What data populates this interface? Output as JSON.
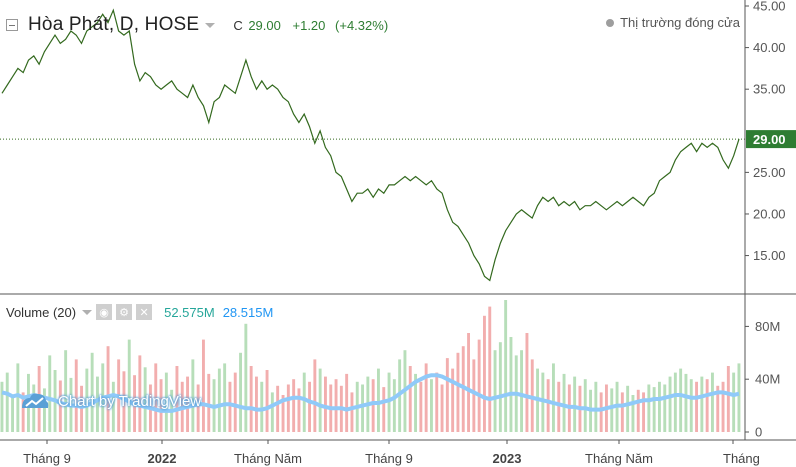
{
  "header": {
    "symbol": "Hòa Phát, D, HOSE",
    "close_label": "C",
    "close_value": "29.00",
    "change": "+1.20",
    "change_pct": "(+4.32%)",
    "market_status": "Thị trường đóng cửa"
  },
  "volume_legend": {
    "title": "Volume (20)",
    "value": "52.575M",
    "ma_value": "28.515M"
  },
  "watermark": "Chart by TradingView",
  "colors": {
    "price_line": "#33691e",
    "last_price_bg": "#2e7d32",
    "volume_up": "#a5d6a7",
    "volume_down": "#ef9a9a",
    "volume_ma": "#90caf9"
  },
  "chart_data": [
    {
      "type": "line",
      "series": [
        {
          "values": [
            34.5,
            35.5,
            36.5,
            37.5,
            37.0,
            38.5,
            39.0,
            38.0,
            39.5,
            40.5,
            41.5,
            40.5,
            41.0,
            42.0,
            41.5,
            40.5,
            42.0,
            42.5,
            43.0,
            44.0,
            43.0,
            44.5,
            42.0,
            41.5,
            42.0,
            38.0,
            36.0,
            37.0,
            36.5,
            35.5,
            35.0,
            35.5,
            36.0,
            35.0,
            34.5,
            34.0,
            35.5,
            34.0,
            33.0,
            31.0,
            33.5,
            34.0,
            35.5,
            35.0,
            34.5,
            36.5,
            38.5,
            36.5,
            35.0,
            36.0,
            35.0,
            35.5,
            35.0,
            34.0,
            33.5,
            32.0,
            31.0,
            32.0,
            30.5,
            28.5,
            30.0,
            28.0,
            27.0,
            25.0,
            24.5,
            23.0,
            21.5,
            22.5,
            22.5,
            23.0,
            22.0,
            23.0,
            22.5,
            23.5,
            23.5,
            24.0,
            24.5,
            24.0,
            24.5,
            24.0,
            23.5,
            24.0,
            23.0,
            22.5,
            20.5,
            19.0,
            18.5,
            17.5,
            16.5,
            15.0,
            14.0,
            12.5,
            12.0,
            14.5,
            16.5,
            18.0,
            19.0,
            20.0,
            20.5,
            20.0,
            19.5,
            21.0,
            22.0,
            21.5,
            22.0,
            21.0,
            21.5,
            21.0,
            21.5,
            20.5,
            21.0,
            21.0,
            21.5,
            21.0,
            20.5,
            21.0,
            21.5,
            21.0,
            21.5,
            22.0,
            21.5,
            21.0,
            22.0,
            22.5,
            24.0,
            24.5,
            25.0,
            26.5,
            27.5,
            28.0,
            28.5,
            27.5,
            28.5,
            28.0,
            28.5,
            28.0,
            26.5,
            25.5,
            27.0,
            29.0
          ]
        }
      ],
      "x_tick_labels": [
        "Tháng 9",
        "2022",
        "Tháng Năm",
        "Tháng 9",
        "2023",
        "Tháng Năm",
        "Tháng"
      ],
      "y_tick_labels": [
        "15.00",
        "20.00",
        "25.00",
        "35.00",
        "40.00",
        "45.00"
      ],
      "ylim": [
        10.5,
        45
      ],
      "last_value_label": "29.00",
      "grid": false
    },
    {
      "type": "bar",
      "series": [
        {
          "values": [
            38,
            45,
            28,
            52,
            30,
            44,
            36,
            50,
            33,
            58,
            47,
            39,
            62,
            41,
            55,
            35,
            48,
            60,
            42,
            52,
            65,
            38,
            55,
            46,
            70,
            43,
            58,
            49,
            36,
            52,
            40,
            45,
            32,
            50,
            38,
            42,
            55,
            36,
            70,
            44,
            40,
            48,
            52,
            38,
            45,
            60,
            82,
            50,
            42,
            38,
            47,
            30,
            35,
            28,
            36,
            40,
            33,
            45,
            38,
            55,
            48,
            42,
            36,
            40,
            35,
            44,
            30,
            38,
            36,
            42,
            40,
            48,
            34,
            45,
            40,
            55,
            62,
            50,
            44,
            38,
            52,
            40,
            45,
            36,
            56,
            48,
            60,
            65,
            75,
            55,
            70,
            88,
            95,
            62,
            68,
            100,
            72,
            58,
            62,
            75,
            55,
            48,
            45,
            40,
            52,
            38,
            44,
            36,
            42,
            35,
            40,
            32,
            38,
            30,
            36,
            33,
            38,
            30,
            35,
            28,
            32,
            30,
            36,
            34,
            38,
            36,
            42,
            45,
            48,
            44,
            40,
            38,
            42,
            40,
            45,
            35,
            38,
            50,
            45,
            52
          ]
        },
        {
          "name": "MA",
          "values": [
            30,
            29,
            27,
            28,
            26,
            27,
            28,
            27,
            26,
            25,
            24,
            22,
            21,
            20,
            20,
            19,
            20,
            22,
            24,
            26,
            27,
            28,
            27,
            25,
            23,
            21,
            20,
            19,
            18,
            17,
            16,
            16,
            16,
            17,
            18,
            19,
            20,
            21,
            21,
            20,
            19,
            20,
            21,
            21,
            20,
            19,
            18,
            18,
            17,
            17,
            18,
            20,
            22,
            24,
            25,
            26,
            26,
            25,
            23,
            22,
            20,
            19,
            18,
            18,
            18,
            17,
            18,
            19,
            20,
            21,
            22,
            22,
            23,
            24,
            26,
            29,
            32,
            35,
            38,
            40,
            42,
            43,
            43,
            42,
            40,
            38,
            36,
            34,
            32,
            30,
            28,
            26,
            25,
            26,
            27,
            28,
            29,
            29,
            28,
            27,
            26,
            25,
            24,
            23,
            22,
            21,
            20,
            19,
            19,
            18,
            18,
            17,
            17,
            17,
            18,
            19,
            20,
            20,
            21,
            22,
            23,
            24,
            24,
            25,
            25,
            26,
            27,
            28,
            28,
            27,
            26,
            26,
            27,
            28,
            29,
            30,
            30,
            29,
            28,
            29
          ]
        }
      ],
      "y_tick_labels": [
        "0",
        "40M",
        "80M"
      ],
      "ylim": [
        0,
        100
      ]
    }
  ]
}
